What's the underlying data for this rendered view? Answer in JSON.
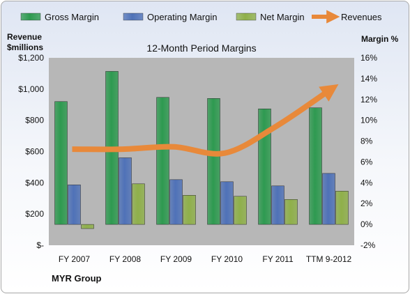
{
  "chart_data": {
    "type": "bar",
    "title": "12-Month Period Margins",
    "company": "MYR Group",
    "categories": [
      "FY 2007",
      "FY 2008",
      "FY 2009",
      "FY 2010",
      "FY 2011",
      "TTM 9-2012"
    ],
    "series": [
      {
        "name": "Gross Margin",
        "axis": "right",
        "values": [
          11.8,
          14.7,
          12.2,
          12.1,
          11.1,
          11.2
        ],
        "color": "#2e9a50"
      },
      {
        "name": "Operating Margin",
        "axis": "right",
        "values": [
          3.8,
          6.4,
          4.3,
          4.1,
          3.7,
          4.9
        ],
        "color": "#4f72b8"
      },
      {
        "name": "Net Margin",
        "axis": "right",
        "values": [
          -0.4,
          3.9,
          2.8,
          2.7,
          2.4,
          3.2
        ],
        "color": "#8fb04a"
      }
    ],
    "line_series": {
      "name": "Revenues",
      "axis": "left",
      "values": [
        615,
        615,
        630,
        590,
        760,
        980
      ],
      "color": "#e8893a"
    },
    "left_axis": {
      "title_line1": "Revenue",
      "title_line2": "$millions",
      "ylim": [
        0,
        1200
      ],
      "ticks": [
        0,
        200,
        400,
        600,
        800,
        1000,
        1200
      ],
      "tick_labels": [
        "$-",
        "$200",
        "$400",
        "$600",
        "$800",
        "$1,000",
        "$1,200"
      ]
    },
    "right_axis": {
      "title": "Margin %",
      "ylim": [
        -2,
        16
      ],
      "ticks": [
        -2,
        0,
        2,
        4,
        6,
        8,
        10,
        12,
        14,
        16
      ],
      "tick_labels": [
        "-2%",
        "0%",
        "2%",
        "4%",
        "6%",
        "8%",
        "10%",
        "12%",
        "14%",
        "16%"
      ]
    },
    "legend": {
      "position": "top",
      "items": [
        "Gross Margin",
        "Operating Margin",
        "Net Margin",
        "Revenues"
      ]
    },
    "grid": false,
    "plot_background": "#b7b7b7"
  }
}
